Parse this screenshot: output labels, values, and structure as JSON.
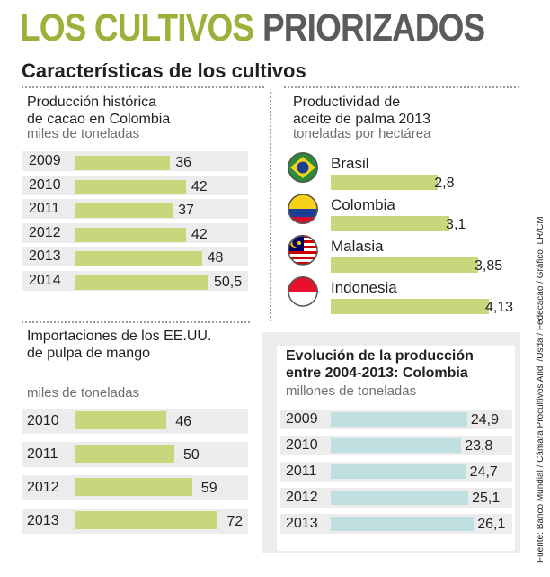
{
  "header": {
    "title_part1": "LOS CULTIVOS",
    "title_part2": "PRIORIZADOS",
    "subtitle": "Características de los cultivos"
  },
  "colors": {
    "green": "#c9d77c",
    "teal": "#bfdfe0",
    "title_green": "#9bb23a",
    "title_gray": "#5a5b5d",
    "row_bg": "#ececec"
  },
  "source": "Fuente: Banco Mundial / Cámara Procultivos Andi /Usda / Fedecacao / Gráfico: LR/CM",
  "chart_data": [
    {
      "type": "bar",
      "title_line1": "Producción histórica",
      "title_line2": "de cacao en Colombia",
      "unit": "miles de toneladas",
      "categories": [
        "2009",
        "2010",
        "2011",
        "2012",
        "2013",
        "2014"
      ],
      "values": [
        36,
        42,
        37,
        42,
        48,
        50.5
      ],
      "value_labels": [
        "36",
        "42",
        "37",
        "42",
        "48",
        "50,5"
      ]
    },
    {
      "type": "bar",
      "title_line1": "Productividad de",
      "title_line2": "aceite de palma 2013",
      "unit": "toneladas por hectárea",
      "categories": [
        "Brasil",
        "Colombia",
        "Malasia",
        "Indonesia"
      ],
      "flags": [
        "brazil-flag-icon",
        "colombia-flag-icon",
        "malaysia-flag-icon",
        "indonesia-flag-icon"
      ],
      "values": [
        2.8,
        3.1,
        3.85,
        4.13
      ],
      "value_labels": [
        "2,8",
        "3,1",
        "3,85",
        "4,13"
      ]
    },
    {
      "type": "bar",
      "title_line1": "Importaciones de los EE.UU.",
      "title_line2": "de pulpa de mango",
      "unit": "miles de toneladas",
      "categories": [
        "2010",
        "2011",
        "2012",
        "2013"
      ],
      "values": [
        46,
        50,
        59,
        72
      ],
      "value_labels": [
        "46",
        "50",
        "59",
        "72"
      ]
    },
    {
      "type": "bar",
      "title_line1": "Evolución de la producción",
      "title_line2": "entre 2004-2013: Colombia",
      "unit": "millones de toneladas",
      "categories": [
        "2009",
        "2010",
        "2011",
        "2012",
        "2013"
      ],
      "values": [
        24.9,
        23.8,
        24.7,
        25.1,
        26.1
      ],
      "value_labels": [
        "24,9",
        "23,8",
        "24,7",
        "25,1",
        "26,1"
      ]
    }
  ]
}
